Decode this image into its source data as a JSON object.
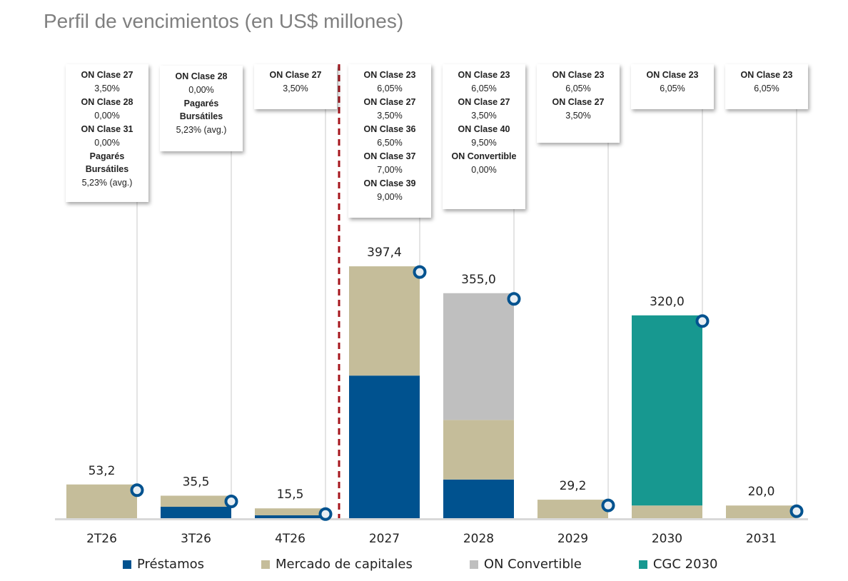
{
  "title": "Perfil de vencimientos (en US$ millones)",
  "chart_data": {
    "type": "bar",
    "stacked": true,
    "title": "Perfil de vencimientos (en US$ millones)",
    "xlabel": "",
    "ylabel": "",
    "ylim": [
      0,
      420
    ],
    "grid": false,
    "legend_position": "bottom",
    "categories": [
      "2T26",
      "3T26",
      "4T26",
      "2027",
      "2028",
      "2029",
      "2030",
      "2031"
    ],
    "totals": [
      "53,2",
      "35,5",
      "15,5",
      "397,4",
      "355,0",
      "29,2",
      "320,0",
      "20,0"
    ],
    "series": [
      {
        "name": "Préstamos",
        "color": "#00528f",
        "values": [
          0,
          18.0,
          4.5,
          225.0,
          61.0,
          0,
          0,
          0
        ]
      },
      {
        "name": "Mercado de capitales",
        "color": "#c5bd9a",
        "values": [
          53.2,
          17.5,
          11.0,
          172.4,
          94.0,
          29.2,
          20.0,
          20.0
        ]
      },
      {
        "name": "ON Convertible",
        "color": "#bfbfbf",
        "values": [
          0,
          0,
          0,
          0,
          200.0,
          0,
          0,
          0
        ]
      },
      {
        "name": "CGC 2030",
        "color": "#179890",
        "values": [
          0,
          0,
          0,
          0,
          0,
          0,
          300.0,
          0
        ]
      }
    ],
    "annotations": {
      "divider": "dashed line between 4T26 and 2027",
      "divider_color": "#a5141c",
      "marker_color": "#00528f"
    },
    "callouts": [
      {
        "category": "2T26",
        "lines": [
          {
            "text": "ON Clase 27",
            "bold": true
          },
          {
            "text": "3,50%",
            "bold": false
          },
          {
            "text": "ON Clase 28",
            "bold": true
          },
          {
            "text": "0,00%",
            "bold": false
          },
          {
            "text": "ON Clase 31",
            "bold": true
          },
          {
            "text": "0,00%",
            "bold": false
          },
          {
            "text": "Pagarés Bursátiles",
            "bold": true
          },
          {
            "text": "5,23% (avg.)",
            "bold": false
          }
        ]
      },
      {
        "category": "3T26",
        "lines": [
          {
            "text": "ON Clase 28",
            "bold": true
          },
          {
            "text": "0,00%",
            "bold": false
          },
          {
            "text": "Pagarés Bursátiles",
            "bold": true
          },
          {
            "text": "5,23% (avg.)",
            "bold": false
          }
        ]
      },
      {
        "category": "4T26",
        "lines": [
          {
            "text": "ON Clase 27",
            "bold": true
          },
          {
            "text": "3,50%",
            "bold": false
          }
        ]
      },
      {
        "category": "2027",
        "lines": [
          {
            "text": "ON Clase 23",
            "bold": true
          },
          {
            "text": "6,05%",
            "bold": false
          },
          {
            "text": "ON Clase 27",
            "bold": true
          },
          {
            "text": "3,50%",
            "bold": false
          },
          {
            "text": "ON Clase 36",
            "bold": true
          },
          {
            "text": "6,50%",
            "bold": false
          },
          {
            "text": "ON Clase 37",
            "bold": true
          },
          {
            "text": "7,00%",
            "bold": false
          },
          {
            "text": "ON Clase 39",
            "bold": true
          },
          {
            "text": "9,00%",
            "bold": false
          }
        ]
      },
      {
        "category": "2028",
        "lines": [
          {
            "text": "ON Clase 23",
            "bold": true
          },
          {
            "text": "6,05%",
            "bold": false
          },
          {
            "text": "ON Clase 27",
            "bold": true
          },
          {
            "text": "3,50%",
            "bold": false
          },
          {
            "text": "ON Clase 40",
            "bold": true
          },
          {
            "text": "9,50%",
            "bold": false
          },
          {
            "text": "ON Convertible",
            "bold": true
          },
          {
            "text": "0,00%",
            "bold": false
          }
        ]
      },
      {
        "category": "2029",
        "lines": [
          {
            "text": "ON Clase 23",
            "bold": true
          },
          {
            "text": "6,05%",
            "bold": false
          },
          {
            "text": "ON Clase 27",
            "bold": true
          },
          {
            "text": "3,50%",
            "bold": false
          }
        ]
      },
      {
        "category": "2030",
        "lines": [
          {
            "text": "ON Clase 23",
            "bold": true
          },
          {
            "text": "6,05%",
            "bold": false
          }
        ]
      },
      {
        "category": "2031",
        "lines": [
          {
            "text": "ON Clase 23",
            "bold": true
          },
          {
            "text": "6,05%",
            "bold": false
          }
        ]
      }
    ]
  }
}
